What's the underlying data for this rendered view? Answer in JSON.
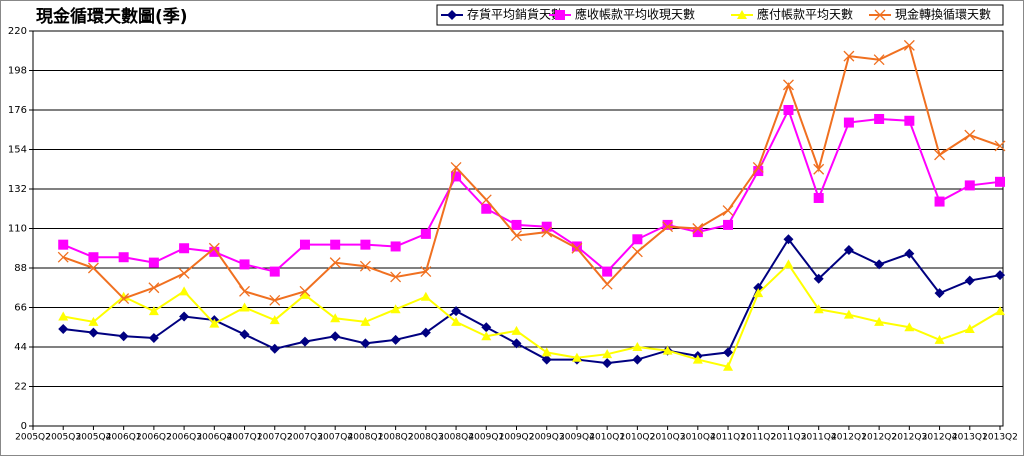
{
  "chart_data": {
    "type": "line",
    "title": "現金循環天數圖(季)",
    "categories": [
      "2005Q2",
      "2005Q3",
      "2005Q4",
      "2006Q1",
      "2006Q2",
      "2006Q3",
      "2006Q4",
      "2007Q1",
      "2007Q2",
      "2007Q3",
      "2007Q4",
      "2008Q1",
      "2008Q2",
      "2008Q3",
      "2008Q4",
      "2009Q1",
      "2009Q2",
      "2009Q3",
      "2009Q4",
      "2010Q1",
      "2010Q2",
      "2010Q3",
      "2010Q4",
      "2011Q1",
      "2011Q2",
      "2011Q3",
      "2011Q4",
      "2012Q1",
      "2012Q2",
      "2012Q3",
      "2012Q4",
      "2013Q1",
      "2013Q2"
    ],
    "series": [
      {
        "name": "存貨平均銷貨天數",
        "color": "#000080",
        "marker": "diamond",
        "values": [
          null,
          54,
          52,
          50,
          49,
          61,
          59,
          51,
          43,
          47,
          50,
          46,
          48,
          52,
          64,
          55,
          46,
          37,
          37,
          35,
          37,
          42,
          39,
          41,
          77,
          104,
          82,
          98,
          90,
          96,
          74,
          81,
          84
        ]
      },
      {
        "name": "應收帳款平均收現天數",
        "color": "#ff00ff",
        "marker": "square",
        "values": [
          null,
          101,
          94,
          94,
          91,
          99,
          97,
          90,
          86,
          101,
          101,
          101,
          100,
          107,
          139,
          121,
          112,
          111,
          100,
          86,
          104,
          112,
          108,
          112,
          142,
          176,
          127,
          169,
          171,
          170,
          125,
          134,
          136
        ]
      },
      {
        "name": "應付帳款平均天數",
        "color": "#ffff00",
        "marker": "triangle",
        "values": [
          null,
          61,
          58,
          72,
          64,
          75,
          57,
          66,
          59,
          73,
          60,
          58,
          65,
          72,
          58,
          50,
          53,
          41,
          38,
          40,
          44,
          42,
          37,
          33,
          74,
          90,
          65,
          62,
          58,
          55,
          48,
          54,
          64
        ]
      },
      {
        "name": "現金轉換循環天數",
        "color": "#f07020",
        "marker": "x",
        "values": [
          null,
          94,
          88,
          71,
          77,
          85,
          99,
          75,
          70,
          75,
          91,
          89,
          83,
          86,
          144,
          126,
          106,
          108,
          99,
          79,
          97,
          111,
          110,
          120,
          144,
          190,
          143,
          206,
          204,
          212,
          151,
          162,
          156
        ]
      }
    ],
    "ylim": [
      0,
      220
    ],
    "yticks": [
      0,
      22,
      44,
      66,
      88,
      110,
      132,
      154,
      176,
      198,
      220
    ],
    "grid": true,
    "legend": "top-right"
  }
}
